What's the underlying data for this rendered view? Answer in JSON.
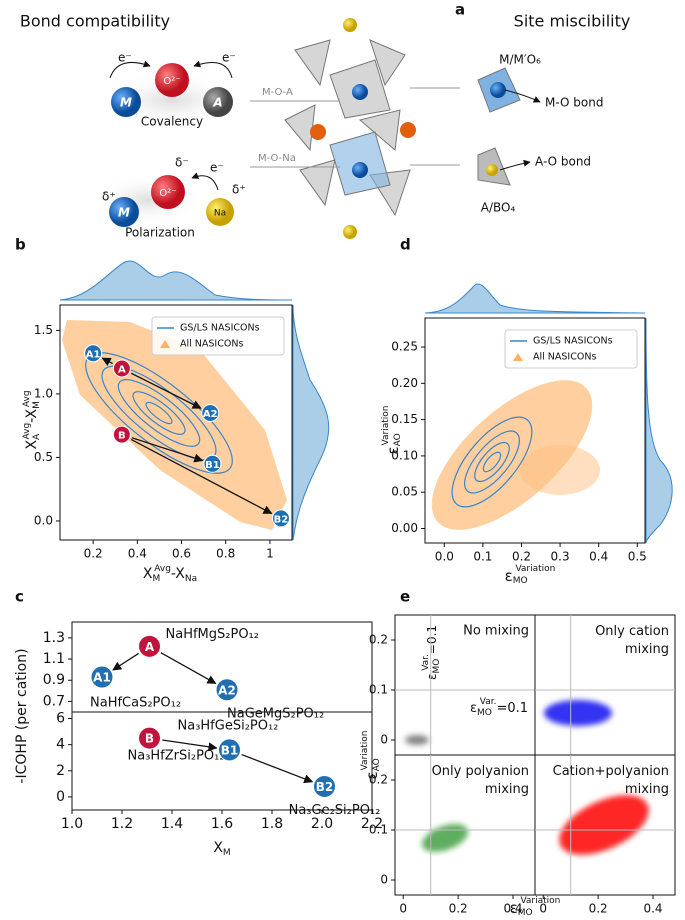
{
  "panel_a": {
    "label": "a",
    "left_title": "Bond compatibility",
    "right_title": "Site miscibility",
    "covalency": {
      "atoms": [
        "M",
        "O²⁻",
        "A"
      ],
      "electrons": [
        "e⁻",
        "e⁻"
      ],
      "caption": "Covalency"
    },
    "polarization": {
      "atoms": [
        "M",
        "O²⁻",
        "Na"
      ],
      "charges": [
        "δ⁺",
        "δ⁻",
        "δ⁺"
      ],
      "electron": "e⁻",
      "caption": "Polarization"
    },
    "bonds": [
      "M-O-A",
      "M-O-Na"
    ],
    "sites": [
      "M/M′O₆",
      "M-O bond",
      "A-O bond",
      "A/BO₄"
    ]
  },
  "chart_data": [
    {
      "type": "scatter",
      "panel": "b",
      "xlabel": [
        "X",
        "M",
        "Avg",
        "-X",
        "Na"
      ],
      "ylabel": [
        "X",
        "A",
        "Avg",
        "-X",
        "M",
        "Avg"
      ],
      "xlim": [
        0.05,
        1.1
      ],
      "xticks": [
        0.2,
        0.4,
        0.6,
        0.8,
        1.0
      ],
      "ylim": [
        -0.15,
        1.7
      ],
      "yticks": [
        {
          "value": 0,
          "label": "0.0"
        },
        0.5,
        {
          "value": 1,
          "label": "1.0"
        },
        1.5
      ],
      "legend": [
        {
          "name": "GS/LS NASICONs",
          "color": "#3a86c8"
        },
        {
          "name": "All NASICONs",
          "color": "#ffb266"
        }
      ],
      "points": {
        "labels": [
          "A1",
          "A",
          "A2",
          "B",
          "B1",
          "B2"
        ],
        "x": [
          0.2,
          0.33,
          0.73,
          0.33,
          0.74,
          1.05
        ],
        "y": [
          1.32,
          1.2,
          0.85,
          0.68,
          0.45,
          0.02
        ],
        "colors": [
          "#1f6fb2",
          "#c0143c",
          "#1f6fb2",
          "#c0143c",
          "#1f6fb2",
          "#1f6fb2"
        ]
      }
    },
    {
      "type": "scatter",
      "panel": "d",
      "xlabel": [
        "ε",
        "MO",
        "Variation"
      ],
      "ylabel": [
        "ε",
        "AO",
        "Variation"
      ],
      "xlim": [
        -0.05,
        0.52
      ],
      "xticks": [
        {
          "value": 0,
          "label": "0.0"
        },
        0.1,
        0.2,
        0.3,
        0.4,
        0.5
      ],
      "ylim": [
        -0.02,
        0.29
      ],
      "yticks": [
        {
          "value": 0,
          "label": "0.00"
        },
        0.05,
        {
          "value": 0.1,
          "label": "0.10"
        },
        0.15,
        {
          "value": 0.2,
          "label": "0.20"
        },
        0.25
      ],
      "legend": [
        {
          "name": "GS/LS NASICONs",
          "color": "#3a86c8"
        },
        {
          "name": "All NASICONs",
          "color": "#ffb266"
        }
      ]
    },
    {
      "type": "scatter",
      "panel": "c",
      "ylabel": "-ICOHP (per cation)",
      "xlim": [
        1.0,
        2.2
      ],
      "ylim": [
        0.6,
        1.45
      ],
      "yticks": [
        0.7,
        0.9,
        1.1,
        1.3
      ],
      "points": {
        "labels": [
          "A",
          "A1",
          "A2"
        ],
        "names": [
          "NaHfMgS₂PO₁₂",
          "NaHfCaS₂PO₁₂",
          "NaGeMgS₂PO₁₂"
        ],
        "x": [
          1.31,
          1.12,
          1.62
        ],
        "y": [
          1.22,
          0.93,
          0.81
        ],
        "colors": [
          "#c0143c",
          "#1f6fb2",
          "#1f6fb2"
        ]
      }
    },
    {
      "type": "scatter",
      "xlabel": [
        "X",
        "M"
      ],
      "xlim": [
        1.0,
        2.2
      ],
      "xticks": [
        {
          "value": 1,
          "label": "1.0"
        },
        1.2,
        1.4,
        1.6,
        1.8,
        {
          "value": 2,
          "label": "2.0"
        },
        2.2
      ],
      "ylim": [
        -1,
        6.5
      ],
      "yticks": [
        0,
        2,
        4,
        6
      ],
      "points": {
        "labels": [
          "B",
          "B1",
          "B2"
        ],
        "names": [
          "Na₃HfZrSi₂PO₁₂",
          "Na₃HfGeSi₂PO₁₂",
          "Na₃Ge₂Si₂PO₁₂"
        ],
        "x": [
          1.31,
          1.63,
          2.01
        ],
        "y": [
          4.5,
          3.6,
          0.8
        ],
        "colors": [
          "#c0143c",
          "#1f6fb2",
          "#1f6fb2"
        ]
      }
    },
    {
      "type": "scatter",
      "panel": "e",
      "xlabel": [
        "ε",
        "MO",
        "Variation"
      ],
      "ylabel": [
        "ε",
        "AO",
        "Variation"
      ],
      "xlim": [
        -0.03,
        0.48
      ],
      "xticks": [
        0,
        0.2,
        0.4
      ],
      "ylim": [
        -0.03,
        0.25
      ],
      "yticks": [
        0,
        0.1,
        0.2
      ],
      "guides": {
        "x": 0.1,
        "y": 0.1
      },
      "subplots": [
        {
          "title": "No mixing",
          "color": "#333333"
        },
        {
          "title": "Only cation\nmixing",
          "color": "#0000ee"
        },
        {
          "title": "Only polyanion\nmixing",
          "color": "#1a8a1a"
        },
        {
          "title": "Cation+polyanion\nmixing",
          "color": "#ff0000"
        }
      ],
      "annotations": [
        [
          "ε",
          "MO",
          "Var.",
          "=0.1"
        ],
        [
          "ε",
          "MO",
          "Var.",
          "=0.1"
        ]
      ]
    }
  ]
}
